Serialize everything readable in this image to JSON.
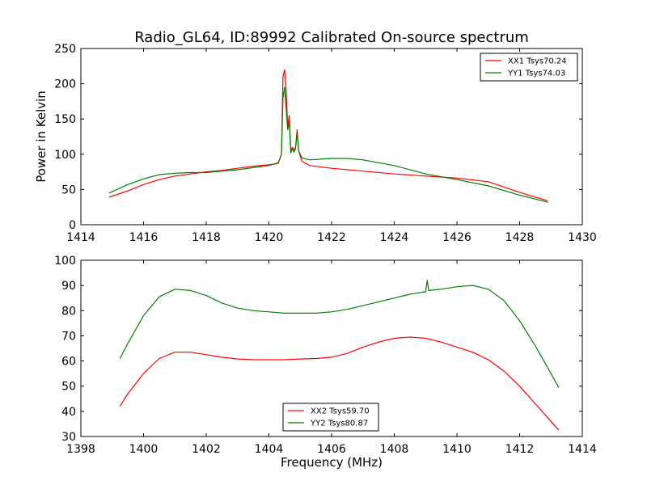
{
  "figure": {
    "title": "Radio_GL64, ID:89992 Calibrated On-source spectrum"
  },
  "chart_data": [
    {
      "type": "line",
      "title": "Radio_GL64, ID:89992 Calibrated On-source spectrum",
      "xlabel": "",
      "ylabel": "Power in Kelvin",
      "xlim": [
        1414,
        1430
      ],
      "ylim": [
        0,
        250
      ],
      "xticks": [
        1414,
        1416,
        1418,
        1420,
        1422,
        1424,
        1426,
        1428,
        1430
      ],
      "yticks": [
        0,
        50,
        100,
        150,
        200,
        250
      ],
      "grid": false,
      "legend_position": "top-right",
      "series": [
        {
          "name": "XX1 Tsys70.24",
          "color": "#ff0000",
          "x": [
            1414.9,
            1415.5,
            1416,
            1416.5,
            1417,
            1417.5,
            1418,
            1418.5,
            1419,
            1419.5,
            1420,
            1420.3,
            1420.4,
            1420.45,
            1420.5,
            1420.55,
            1420.6,
            1420.65,
            1420.7,
            1420.75,
            1420.8,
            1420.85,
            1420.9,
            1420.95,
            1421.05,
            1421.3,
            1422,
            1423,
            1424,
            1425,
            1426,
            1427,
            1428,
            1428.9
          ],
          "y": [
            39,
            48,
            57,
            64,
            69,
            72,
            75,
            77,
            80,
            83,
            85,
            87,
            100,
            210,
            220,
            190,
            140,
            155,
            105,
            110,
            105,
            110,
            135,
            105,
            90,
            84,
            80,
            76,
            72,
            69,
            66,
            61,
            46,
            34
          ]
        },
        {
          "name": "YY1 Tsys74.03",
          "color": "#008000",
          "x": [
            1414.9,
            1415.5,
            1416,
            1416.5,
            1417,
            1417.5,
            1418,
            1418.5,
            1419,
            1419.5,
            1420,
            1420.3,
            1420.4,
            1420.45,
            1420.5,
            1420.55,
            1420.6,
            1420.65,
            1420.7,
            1420.75,
            1420.8,
            1420.85,
            1420.9,
            1420.95,
            1421.05,
            1421.3,
            1422,
            1422.5,
            1423,
            1424,
            1425,
            1426,
            1427,
            1428,
            1428.9
          ],
          "y": [
            45,
            57,
            65,
            71,
            73,
            74,
            74,
            76,
            78,
            81,
            84,
            88,
            100,
            180,
            195,
            165,
            135,
            145,
            102,
            108,
            103,
            108,
            130,
            105,
            95,
            92,
            94,
            94,
            92,
            84,
            72,
            64,
            55,
            42,
            32
          ]
        }
      ]
    },
    {
      "type": "line",
      "title": "",
      "xlabel": "Frequency (MHz)",
      "ylabel": "",
      "xlim": [
        1398,
        1414
      ],
      "ylim": [
        30,
        100
      ],
      "xticks": [
        1398,
        1400,
        1402,
        1404,
        1406,
        1408,
        1410,
        1412,
        1414
      ],
      "yticks": [
        30,
        40,
        50,
        60,
        70,
        80,
        90,
        100
      ],
      "grid": false,
      "legend_position": "bottom-center",
      "series": [
        {
          "name": "XX2 Tsys59.70",
          "color": "#ff0000",
          "x": [
            1399.25,
            1399.5,
            1400,
            1400.5,
            1401,
            1401.5,
            1402,
            1402.5,
            1403,
            1403.5,
            1404,
            1404.5,
            1405,
            1405.5,
            1406,
            1406.5,
            1407,
            1407.5,
            1408,
            1408.5,
            1409,
            1409.5,
            1410,
            1410.5,
            1411,
            1411.5,
            1412,
            1412.5,
            1413,
            1413.25
          ],
          "y": [
            42,
            47,
            55,
            61,
            63.5,
            63.5,
            62.5,
            61.5,
            60.8,
            60.5,
            60.5,
            60.5,
            60.8,
            61,
            61.5,
            63,
            65.5,
            67.5,
            69,
            69.5,
            69,
            67.5,
            65.5,
            63.5,
            60.5,
            56,
            50,
            43,
            36,
            32.5
          ]
        },
        {
          "name": "YY2 Tsys80.87",
          "color": "#008000",
          "x": [
            1399.25,
            1399.5,
            1400,
            1400.5,
            1401,
            1401.5,
            1402,
            1402.5,
            1403,
            1403.5,
            1404,
            1404.5,
            1405,
            1405.5,
            1406,
            1406.5,
            1407,
            1407.5,
            1408,
            1408.5,
            1409,
            1409.05,
            1409.1,
            1409.5,
            1410,
            1410.5,
            1411,
            1411.5,
            1412,
            1412.5,
            1413,
            1413.25
          ],
          "y": [
            61,
            67,
            78,
            85.5,
            88.5,
            88,
            86,
            83,
            81,
            80,
            79.5,
            79,
            79,
            79,
            79.5,
            80.5,
            82,
            83.5,
            85,
            86.5,
            87.5,
            92,
            88,
            88.5,
            89.5,
            90,
            88.5,
            84,
            76,
            66,
            55,
            49.5
          ]
        }
      ]
    }
  ]
}
